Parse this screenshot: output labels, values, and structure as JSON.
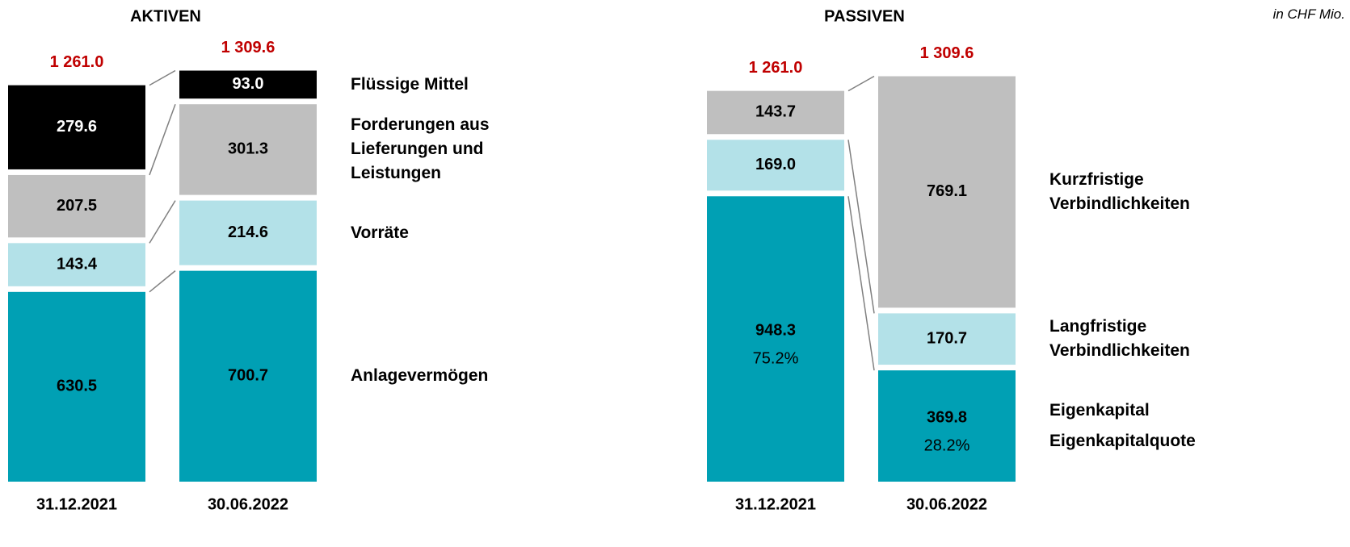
{
  "unit": "in CHF Mio.",
  "chart_data": [
    {
      "type": "stacked_bar",
      "title": "AKTIVEN",
      "categories": [
        "31.12.2021",
        "30.06.2022"
      ],
      "totals": [
        1261.0,
        1309.6
      ],
      "total_labels": [
        "1 261.0",
        "1 309.6"
      ],
      "total_color": "#c00000",
      "series": [
        {
          "name": "Anlagevermögen",
          "color": "#00a0b4",
          "label_color": "#000000",
          "values": [
            630.5,
            700.7
          ],
          "value_labels": [
            "630.5",
            "700.7"
          ]
        },
        {
          "name": "Vorräte",
          "color": "#b3e1e8",
          "label_color": "#000000",
          "values": [
            143.4,
            214.6
          ],
          "value_labels": [
            "143.4",
            "214.6"
          ]
        },
        {
          "name": "Forderungen aus Lieferungen und Leistungen",
          "color": "#bfbfbf",
          "label_color": "#000000",
          "values": [
            207.5,
            301.3
          ],
          "value_labels": [
            "207.5",
            "301.3"
          ]
        },
        {
          "name": "Flüssige Mittel",
          "color": "#000000",
          "label_color": "#ffffff",
          "values": [
            279.6,
            93.0
          ],
          "value_labels": [
            "279.6",
            "93.0"
          ]
        }
      ]
    },
    {
      "type": "stacked_bar",
      "title": "PASSIVEN",
      "categories": [
        "31.12.2021",
        "30.06.2022"
      ],
      "totals": [
        1261.0,
        1309.6
      ],
      "total_labels": [
        "1 261.0",
        "1 309.6"
      ],
      "total_color": "#c00000",
      "series": [
        {
          "name": "Eigenkapital",
          "color": "#00a0b4",
          "label_color": "#000000",
          "values": [
            948.3,
            369.8
          ],
          "value_labels": [
            "948.3",
            "369.8"
          ],
          "shares": [
            75.2,
            28.2
          ],
          "share_labels": [
            "75.2%",
            "28.2%"
          ],
          "share_name": "Eigenkapitalquote"
        },
        {
          "name": "Langfristige Verbindlichkeiten",
          "color": "#b3e1e8",
          "label_color": "#000000",
          "values": [
            169.0,
            170.7
          ],
          "value_labels": [
            "169.0",
            "170.7"
          ]
        },
        {
          "name": "Kurzfristige Verbindlichkeiten",
          "color": "#bfbfbf",
          "label_color": "#000000",
          "values": [
            143.7,
            769.1
          ],
          "value_labels": [
            "143.7",
            "769.1"
          ]
        }
      ]
    }
  ]
}
